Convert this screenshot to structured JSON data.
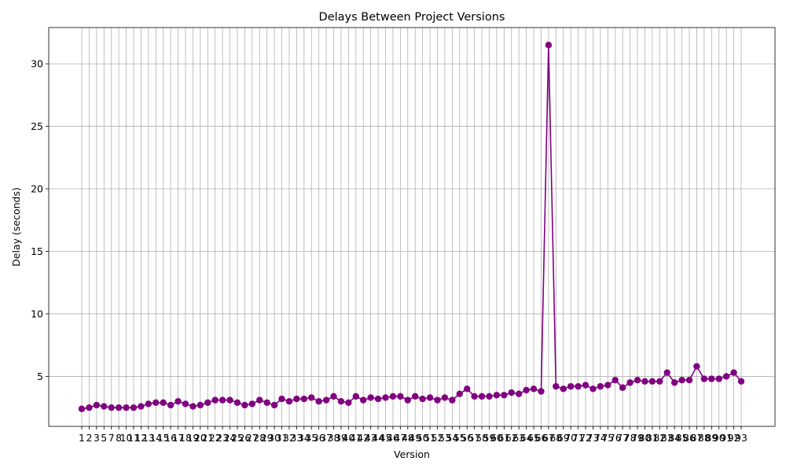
{
  "chart_data": {
    "type": "line",
    "title": "Delays Between Project Versions",
    "xlabel": "Version",
    "ylabel": "Delay (seconds)",
    "ylim": [
      1.0,
      32.9
    ],
    "yticks": [
      5,
      10,
      15,
      20,
      25,
      30
    ],
    "yticks_labels": [
      "5",
      "10",
      "15",
      "20",
      "25",
      "30"
    ],
    "grid": true,
    "color": "#800080",
    "x_tick_labels": [
      "1",
      "2",
      "3",
      "5",
      "7",
      "8",
      "10",
      "11",
      "12",
      "13",
      "14",
      "15",
      "16",
      "17",
      "18",
      "19",
      "20",
      "21",
      "22",
      "23",
      "24",
      "25",
      "26",
      "27",
      "28",
      "29",
      "30",
      "31",
      "32",
      "33",
      "34",
      "35",
      "36",
      "37",
      "38",
      "39",
      "40",
      "41",
      "42",
      "43",
      "44",
      "45",
      "46",
      "47",
      "48",
      "49",
      "50",
      "51",
      "52",
      "53",
      "54",
      "55",
      "56",
      "57",
      "58",
      "59",
      "60",
      "61",
      "62",
      "63",
      "64",
      "65",
      "66",
      "67",
      "68",
      "69",
      "70",
      "71",
      "72",
      "73",
      "74",
      "75",
      "76",
      "77",
      "78",
      "79",
      "80",
      "81",
      "82",
      "83",
      "84",
      "85",
      "86",
      "87",
      "88",
      "89",
      "90",
      "91",
      "92",
      "93"
    ],
    "values": [
      2.4,
      2.5,
      2.7,
      2.6,
      2.5,
      2.5,
      2.5,
      2.5,
      2.6,
      2.8,
      2.9,
      2.9,
      2.7,
      3.0,
      2.8,
      2.6,
      2.7,
      2.9,
      3.1,
      3.1,
      3.1,
      2.9,
      2.7,
      2.8,
      3.1,
      2.9,
      2.7,
      3.2,
      3.0,
      3.2,
      3.2,
      3.3,
      3.0,
      3.1,
      3.4,
      3.0,
      2.9,
      3.4,
      3.1,
      3.3,
      3.2,
      3.3,
      3.4,
      3.4,
      3.1,
      3.4,
      3.2,
      3.3,
      3.1,
      3.3,
      3.1,
      3.6,
      4.0,
      3.4,
      3.4,
      3.4,
      3.5,
      3.5,
      3.7,
      3.6,
      3.9,
      4.0,
      3.8,
      31.5,
      4.2,
      4.0,
      4.2,
      4.2,
      4.3,
      4.0,
      4.2,
      4.3,
      4.7,
      4.1,
      4.5,
      4.7,
      4.6,
      4.6,
      4.6,
      5.3,
      4.5,
      4.7,
      4.7,
      5.8,
      4.8,
      4.8,
      4.8,
      5.0,
      5.3,
      4.6
    ]
  }
}
